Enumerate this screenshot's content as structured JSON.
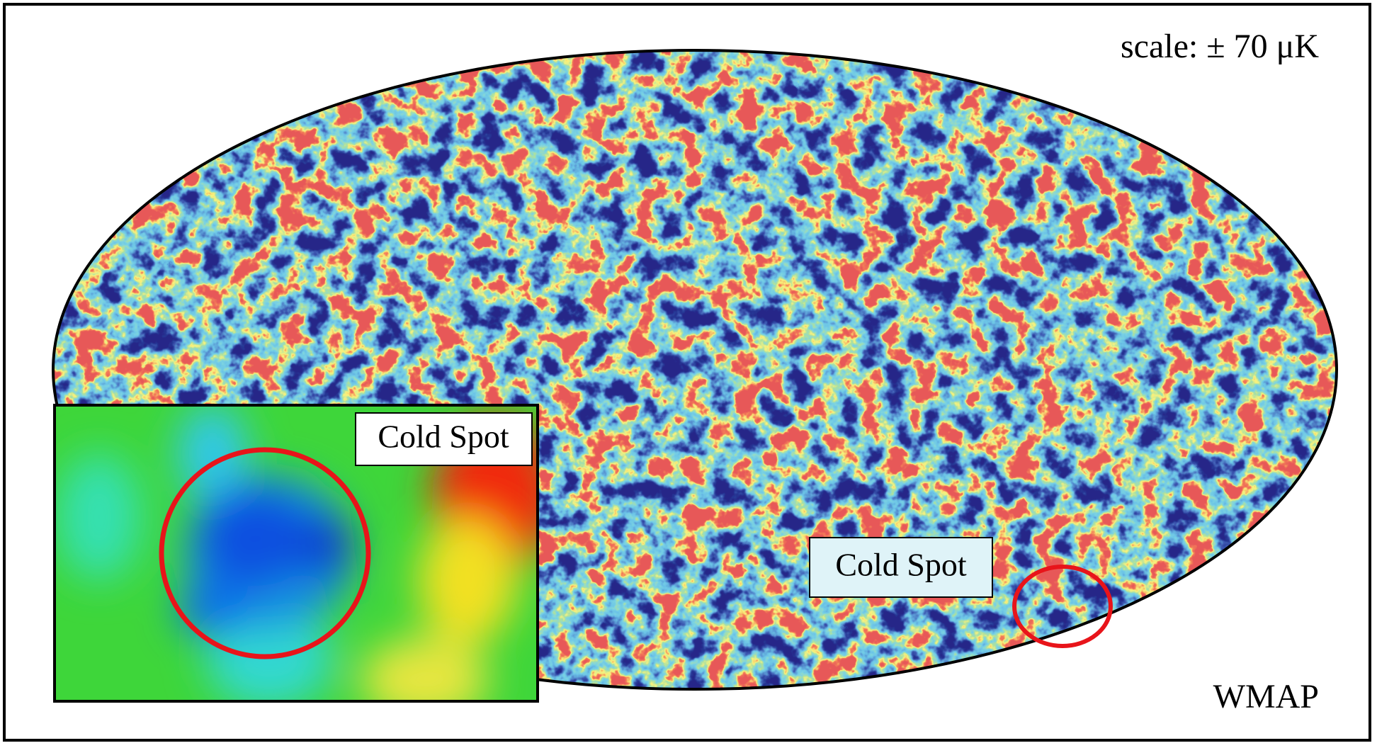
{
  "labels": {
    "scale": "scale: ± 70 μK",
    "inset_label": "Cold Spot",
    "map_label": "Cold Spot",
    "source": "WMAP"
  }
}
